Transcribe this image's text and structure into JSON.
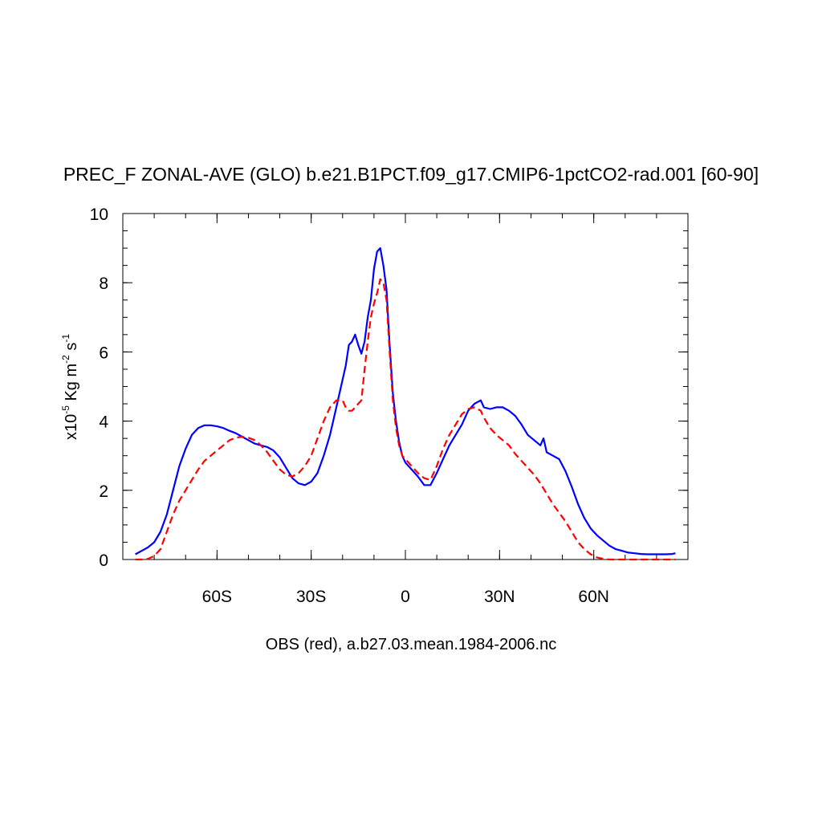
{
  "chart_data": {
    "type": "line",
    "title": "PREC_F ZONAL-AVE (GLO) b.e21.B1PCT.f09_g17.CMIP6-1pctCO2-rad.001 [60-90]",
    "xlabel": "OBS (red), a.b27.03.mean.1984-2006.nc",
    "ylabel": {
      "prefix": "x10",
      "exp1": "-5",
      "mid": " Kg m",
      "exp2": "-2",
      "mid2": " s",
      "exp3": "-1"
    },
    "xlim": [
      -90,
      90
    ],
    "ylim": [
      0,
      10
    ],
    "x_ticks": [
      {
        "value": -60,
        "label": "60S"
      },
      {
        "value": -30,
        "label": "30S"
      },
      {
        "value": 0,
        "label": "0"
      },
      {
        "value": 30,
        "label": "30N"
      },
      {
        "value": 60,
        "label": "60N"
      }
    ],
    "y_ticks": [
      {
        "value": 0,
        "label": "0"
      },
      {
        "value": 2,
        "label": "2"
      },
      {
        "value": 4,
        "label": "4"
      },
      {
        "value": 6,
        "label": "6"
      },
      {
        "value": 8,
        "label": "8"
      },
      {
        "value": 10,
        "label": "10"
      }
    ],
    "series": [
      {
        "color": "#0000ff",
        "dash": "solid",
        "points": [
          [
            -86,
            0.15
          ],
          [
            -84,
            0.25
          ],
          [
            -82,
            0.35
          ],
          [
            -80,
            0.5
          ],
          [
            -78,
            0.8
          ],
          [
            -76,
            1.3
          ],
          [
            -74,
            2.0
          ],
          [
            -72,
            2.7
          ],
          [
            -70,
            3.2
          ],
          [
            -68,
            3.6
          ],
          [
            -66,
            3.8
          ],
          [
            -64,
            3.88
          ],
          [
            -62,
            3.88
          ],
          [
            -60,
            3.85
          ],
          [
            -58,
            3.8
          ],
          [
            -56,
            3.72
          ],
          [
            -54,
            3.65
          ],
          [
            -52,
            3.55
          ],
          [
            -50,
            3.45
          ],
          [
            -48,
            3.35
          ],
          [
            -46,
            3.3
          ],
          [
            -44,
            3.25
          ],
          [
            -42,
            3.15
          ],
          [
            -40,
            2.95
          ],
          [
            -38,
            2.65
          ],
          [
            -36,
            2.35
          ],
          [
            -34,
            2.2
          ],
          [
            -32,
            2.15
          ],
          [
            -30,
            2.25
          ],
          [
            -28,
            2.5
          ],
          [
            -26,
            3.0
          ],
          [
            -24,
            3.6
          ],
          [
            -22,
            4.4
          ],
          [
            -20,
            5.2
          ],
          [
            -19,
            5.6
          ],
          [
            -18,
            6.2
          ],
          [
            -17,
            6.3
          ],
          [
            -16,
            6.5
          ],
          [
            -15,
            6.2
          ],
          [
            -14,
            5.95
          ],
          [
            -13,
            6.3
          ],
          [
            -12,
            7.0
          ],
          [
            -11,
            7.5
          ],
          [
            -10,
            8.4
          ],
          [
            -9,
            8.9
          ],
          [
            -8,
            9.0
          ],
          [
            -7,
            8.5
          ],
          [
            -6,
            7.8
          ],
          [
            -5,
            6.2
          ],
          [
            -4,
            4.8
          ],
          [
            -3,
            4.0
          ],
          [
            -2,
            3.4
          ],
          [
            -1,
            3.0
          ],
          [
            0,
            2.8
          ],
          [
            2,
            2.6
          ],
          [
            4,
            2.4
          ],
          [
            6,
            2.15
          ],
          [
            8,
            2.15
          ],
          [
            10,
            2.5
          ],
          [
            12,
            2.9
          ],
          [
            14,
            3.3
          ],
          [
            16,
            3.6
          ],
          [
            18,
            3.9
          ],
          [
            20,
            4.3
          ],
          [
            22,
            4.5
          ],
          [
            24,
            4.6
          ],
          [
            25,
            4.4
          ],
          [
            27,
            4.35
          ],
          [
            29,
            4.4
          ],
          [
            31,
            4.4
          ],
          [
            33,
            4.3
          ],
          [
            35,
            4.15
          ],
          [
            37,
            3.9
          ],
          [
            39,
            3.6
          ],
          [
            41,
            3.45
          ],
          [
            43,
            3.3
          ],
          [
            44,
            3.5
          ],
          [
            45,
            3.1
          ],
          [
            47,
            3.0
          ],
          [
            49,
            2.9
          ],
          [
            51,
            2.55
          ],
          [
            53,
            2.1
          ],
          [
            55,
            1.6
          ],
          [
            57,
            1.2
          ],
          [
            59,
            0.9
          ],
          [
            61,
            0.7
          ],
          [
            63,
            0.55
          ],
          [
            65,
            0.4
          ],
          [
            67,
            0.3
          ],
          [
            69,
            0.25
          ],
          [
            71,
            0.2
          ],
          [
            73,
            0.18
          ],
          [
            75,
            0.16
          ],
          [
            77,
            0.15
          ],
          [
            79,
            0.15
          ],
          [
            81,
            0.15
          ],
          [
            83,
            0.15
          ],
          [
            85,
            0.16
          ],
          [
            86,
            0.18
          ]
        ]
      },
      {
        "color": "#ff0000",
        "dash": "dashed",
        "points": [
          [
            -86,
            0.0
          ],
          [
            -84,
            0.0
          ],
          [
            -82,
            0.02
          ],
          [
            -80,
            0.1
          ],
          [
            -78,
            0.3
          ],
          [
            -76,
            0.8
          ],
          [
            -74,
            1.3
          ],
          [
            -72,
            1.7
          ],
          [
            -70,
            2.0
          ],
          [
            -68,
            2.3
          ],
          [
            -66,
            2.6
          ],
          [
            -64,
            2.85
          ],
          [
            -62,
            3.0
          ],
          [
            -60,
            3.15
          ],
          [
            -58,
            3.3
          ],
          [
            -56,
            3.45
          ],
          [
            -54,
            3.52
          ],
          [
            -52,
            3.55
          ],
          [
            -50,
            3.52
          ],
          [
            -48,
            3.45
          ],
          [
            -46,
            3.3
          ],
          [
            -44,
            3.1
          ],
          [
            -42,
            2.85
          ],
          [
            -40,
            2.6
          ],
          [
            -38,
            2.45
          ],
          [
            -36,
            2.4
          ],
          [
            -34,
            2.5
          ],
          [
            -32,
            2.7
          ],
          [
            -30,
            3.0
          ],
          [
            -28,
            3.5
          ],
          [
            -26,
            4.0
          ],
          [
            -24,
            4.4
          ],
          [
            -22,
            4.6
          ],
          [
            -20,
            4.6
          ],
          [
            -19,
            4.4
          ],
          [
            -18,
            4.3
          ],
          [
            -17,
            4.3
          ],
          [
            -16,
            4.4
          ],
          [
            -15,
            4.5
          ],
          [
            -14,
            4.6
          ],
          [
            -13,
            5.5
          ],
          [
            -12,
            6.3
          ],
          [
            -11,
            7.0
          ],
          [
            -10,
            7.4
          ],
          [
            -9,
            7.7
          ],
          [
            -8,
            8.1
          ],
          [
            -7,
            8.0
          ],
          [
            -6,
            7.5
          ],
          [
            -5,
            6.0
          ],
          [
            -4,
            4.6
          ],
          [
            -3,
            3.8
          ],
          [
            -2,
            3.3
          ],
          [
            -1,
            3.0
          ],
          [
            0,
            2.9
          ],
          [
            2,
            2.7
          ],
          [
            4,
            2.5
          ],
          [
            6,
            2.35
          ],
          [
            8,
            2.3
          ],
          [
            10,
            2.7
          ],
          [
            12,
            3.2
          ],
          [
            14,
            3.6
          ],
          [
            16,
            3.9
          ],
          [
            18,
            4.2
          ],
          [
            20,
            4.35
          ],
          [
            22,
            4.4
          ],
          [
            24,
            4.3
          ],
          [
            25,
            4.1
          ],
          [
            27,
            3.8
          ],
          [
            29,
            3.6
          ],
          [
            31,
            3.45
          ],
          [
            33,
            3.3
          ],
          [
            35,
            3.05
          ],
          [
            37,
            2.85
          ],
          [
            39,
            2.65
          ],
          [
            41,
            2.45
          ],
          [
            43,
            2.2
          ],
          [
            45,
            1.9
          ],
          [
            47,
            1.6
          ],
          [
            49,
            1.35
          ],
          [
            51,
            1.1
          ],
          [
            53,
            0.8
          ],
          [
            55,
            0.5
          ],
          [
            57,
            0.3
          ],
          [
            59,
            0.15
          ],
          [
            61,
            0.06
          ],
          [
            63,
            0.02
          ],
          [
            65,
            0.0
          ],
          [
            67,
            0.0
          ],
          [
            69,
            0.0
          ],
          [
            71,
            0.0
          ],
          [
            73,
            0.0
          ],
          [
            75,
            0.0
          ],
          [
            77,
            0.0
          ],
          [
            79,
            0.0
          ],
          [
            81,
            0.0
          ],
          [
            83,
            0.0
          ],
          [
            85,
            0.0
          ],
          [
            86,
            0.0
          ]
        ]
      }
    ]
  }
}
